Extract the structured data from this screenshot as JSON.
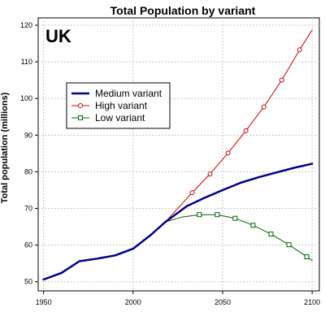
{
  "chart_data": {
    "type": "line",
    "title": "Total Population by variant",
    "annotation": "UK",
    "xlabel": "",
    "ylabel": "Total population (millions)",
    "xlim": [
      1947,
      2104
    ],
    "ylim": [
      47.5,
      122
    ],
    "xticks": [
      1950,
      2000,
      2050,
      2100
    ],
    "yticks": [
      50,
      60,
      70,
      80,
      90,
      100,
      110,
      120
    ],
    "grid": true,
    "legend_position": "upper-left",
    "series": [
      {
        "name": "Medium variant",
        "color": "#00008b",
        "marker": "none",
        "line_weight": "thick",
        "x": [
          1950,
          1960,
          1970,
          1980,
          1990,
          2000,
          2010,
          2018,
          2030,
          2040,
          2050,
          2060,
          2070,
          2080,
          2090,
          2100
        ],
        "y": [
          50.6,
          52.4,
          55.6,
          56.3,
          57.2,
          59.0,
          62.8,
          66.3,
          70.6,
          72.9,
          75.0,
          77.0,
          78.5,
          79.8,
          81.1,
          82.2
        ]
      },
      {
        "name": "High variant",
        "color": "#cc0000",
        "marker": "circle",
        "x": [
          2018,
          2024,
          2033,
          2043,
          2053,
          2063,
          2073,
          2083,
          2093,
          2100
        ],
        "y": [
          66.3,
          69.5,
          74.3,
          79.4,
          85.1,
          91.2,
          97.7,
          105.0,
          113.3,
          118.7
        ],
        "marker_x": [
          2033,
          2043,
          2053,
          2063,
          2073,
          2083,
          2093
        ]
      },
      {
        "name": "Low variant",
        "color": "#006400",
        "marker": "square",
        "x": [
          2018,
          2027,
          2037,
          2047,
          2057,
          2067,
          2077,
          2087,
          2097,
          2100
        ],
        "y": [
          66.3,
          67.6,
          68.3,
          68.3,
          67.3,
          65.4,
          63.0,
          60.1,
          56.8,
          55.8
        ],
        "marker_x": [
          2037,
          2047,
          2057,
          2067,
          2077,
          2087,
          2097
        ]
      }
    ]
  }
}
